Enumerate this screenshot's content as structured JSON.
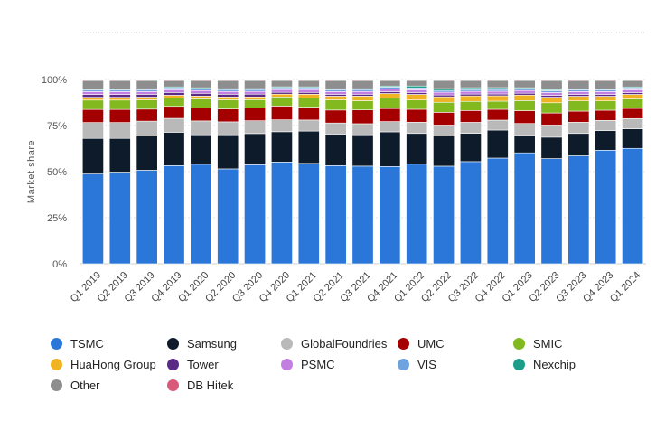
{
  "chart_data": {
    "type": "bar",
    "stacked": true,
    "categories": [
      "Q1 2019",
      "Q2 2019",
      "Q3 2019",
      "Q4 2019",
      "Q1 2020",
      "Q2 2020",
      "Q3 2020",
      "Q4 2020",
      "Q1 2021",
      "Q2 2021",
      "Q3 2021",
      "Q4 2021",
      "Q1 2022",
      "Q2 2022",
      "Q3 2022",
      "Q4 2022",
      "Q1 2023",
      "Q2 2023",
      "Q3 2023",
      "Q4 2023",
      "Q1 2024"
    ],
    "ylabel": "Market share",
    "ylim": [
      0,
      100
    ],
    "yticks": [
      "0%",
      "25%",
      "50%",
      "75%",
      "100%"
    ],
    "grid": true,
    "legend_position": "bottom",
    "series": [
      {
        "name": "TSMC",
        "color": "#2b77d9",
        "values": [
          48,
          49,
          50.5,
          53,
          54,
          51.5,
          54,
          55.5,
          54.5,
          53,
          53,
          52,
          53.5,
          53.5,
          56,
          58.5,
          60.5,
          56.5,
          58,
          61,
          62
        ]
      },
      {
        "name": "Samsung",
        "color": "#0d1b2a",
        "values": [
          19,
          18,
          18.5,
          18,
          16,
          18.5,
          17,
          16.5,
          17.5,
          17,
          17,
          18.5,
          16.5,
          16.5,
          15.5,
          15.5,
          9.5,
          11.5,
          12,
          10.5,
          10.5
        ]
      },
      {
        "name": "GlobalFoundries",
        "color": "#b9b9b9",
        "values": [
          8.5,
          8.5,
          8,
          7.5,
          7.5,
          7,
          7,
          6.5,
          6,
          6,
          6,
          5.5,
          6,
          6,
          6,
          5.5,
          6.5,
          6.5,
          6,
          5.5,
          5.5
        ]
      },
      {
        "name": "UMC",
        "color": "#a50000",
        "values": [
          7,
          7,
          6.5,
          6.5,
          7,
          7,
          7,
          7.5,
          7,
          7,
          7.5,
          7,
          7,
          7,
          6.5,
          6,
          7,
          6.5,
          6,
          5.5,
          5.5
        ]
      },
      {
        "name": "SMIC",
        "color": "#82b91e",
        "values": [
          5,
          5,
          5,
          4.5,
          5,
          5,
          4.5,
          5,
          5,
          5.5,
          5,
          5.5,
          5,
          5.5,
          5,
          4.5,
          5.5,
          5.5,
          5.5,
          5,
          5
        ]
      },
      {
        "name": "HuaHong Group",
        "color": "#f0b323",
        "values": [
          1.5,
          1.5,
          1.5,
          1.5,
          1.5,
          1.5,
          1.5,
          1.5,
          2,
          2,
          2.5,
          2.5,
          3,
          3,
          3,
          3,
          3,
          3,
          2.5,
          2.5,
          2.5
        ]
      },
      {
        "name": "Tower",
        "color": "#5b2a86",
        "values": [
          1.5,
          1.5,
          1.5,
          1.5,
          1.5,
          1.5,
          1.5,
          1,
          1,
          1,
          1,
          1,
          1,
          1,
          1,
          1,
          1,
          1,
          1,
          1,
          1
        ]
      },
      {
        "name": "PSMC",
        "color": "#c27ee0",
        "values": [
          1.5,
          1.5,
          1.5,
          1.5,
          1.5,
          1.5,
          1.5,
          1.5,
          1.5,
          1.5,
          1.5,
          1.5,
          1.5,
          1.5,
          1.5,
          1.5,
          1.5,
          1.5,
          1.5,
          1.5,
          1.5
        ]
      },
      {
        "name": "VIS",
        "color": "#6fa3e0",
        "values": [
          1,
          1,
          1,
          1,
          1,
          1,
          1,
          1,
          1,
          1,
          1,
          1,
          1,
          1,
          1,
          1,
          1,
          1,
          1,
          1,
          1
        ]
      },
      {
        "name": "Nexchip",
        "color": "#1a9e8a",
        "values": [
          0.5,
          0.5,
          0.5,
          0.5,
          0.5,
          0.5,
          0.5,
          0.5,
          0.5,
          0.5,
          0.5,
          0.5,
          1,
          1,
          1,
          1,
          0.5,
          0.5,
          0.5,
          0.5,
          0.5
        ]
      },
      {
        "name": "Other",
        "color": "#8e8e8e",
        "values": [
          4.5,
          4.5,
          4.5,
          3.5,
          4,
          4.5,
          4.5,
          3.5,
          3.5,
          4.5,
          4.5,
          3,
          3,
          4.5,
          4,
          4,
          4,
          5,
          4.5,
          4.5,
          3.5
        ]
      },
      {
        "name": "DB Hitek",
        "color": "#d95a78",
        "values": [
          0.5,
          0.5,
          0.5,
          0.5,
          0.5,
          0.5,
          0.5,
          0.5,
          0.5,
          0.5,
          0.5,
          0.5,
          0.5,
          0.5,
          0.5,
          0.5,
          0.5,
          0.5,
          0.5,
          0.5,
          0.5
        ]
      }
    ],
    "legend_order": [
      "TSMC",
      "Samsung",
      "GlobalFoundries",
      "UMC",
      "SMIC",
      "HuaHong Group",
      "Tower",
      "PSMC",
      "VIS",
      "Nexchip",
      "Other",
      "DB Hitek"
    ]
  }
}
